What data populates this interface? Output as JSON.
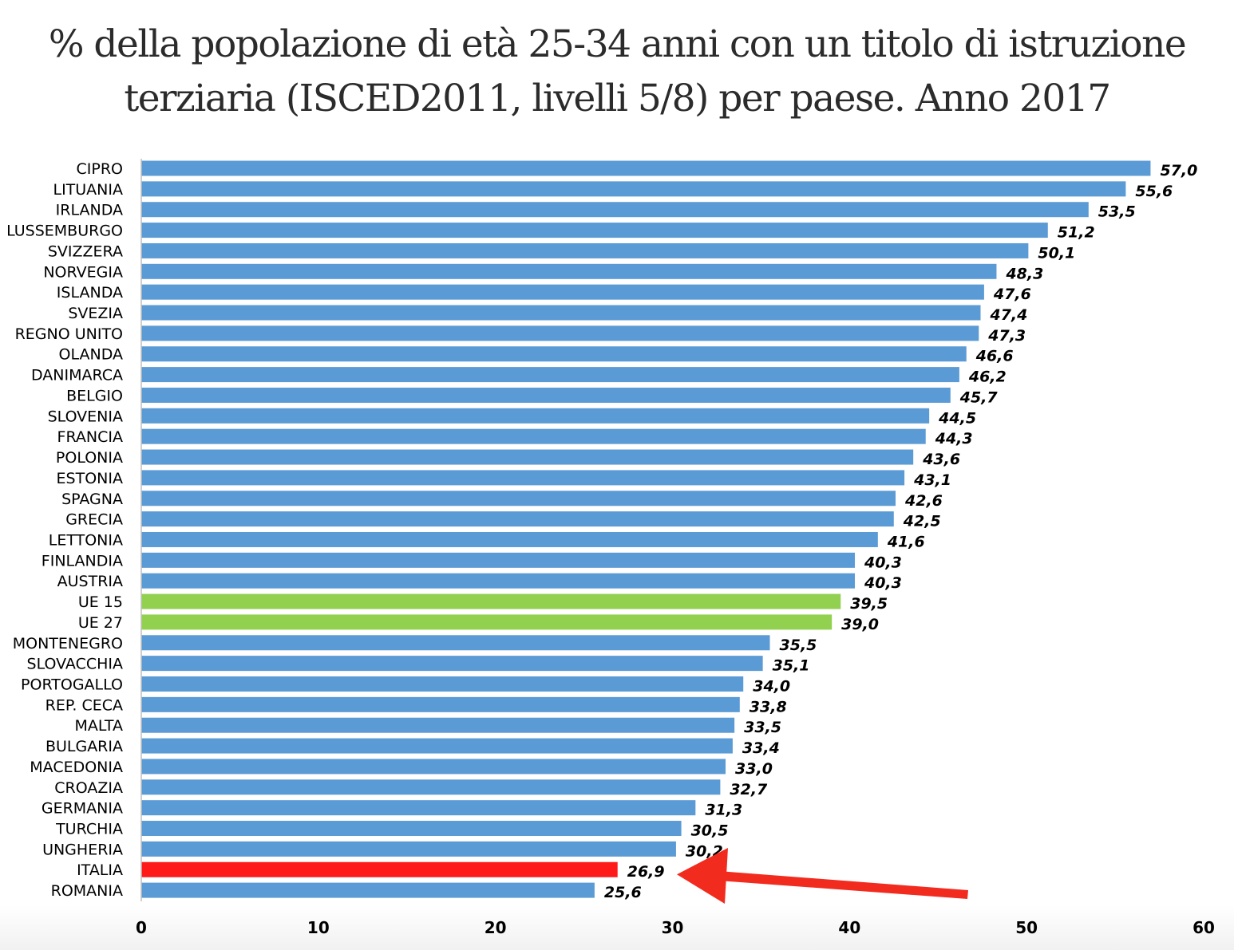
{
  "chart_data": {
    "type": "bar",
    "orientation": "horizontal",
    "title_lines": [
      "% della popolazione di età 25-34 anni con un titolo di istruzione",
      "terziaria (ISCED2011, livelli 5/8) per paese.  Anno 2017"
    ],
    "xlabel": "",
    "ylabel": "",
    "xlim": [
      0,
      60
    ],
    "x_ticks": [
      "0",
      "10",
      "20",
      "30",
      "40",
      "50",
      "60"
    ],
    "grid": false,
    "legend": "none",
    "decimal_separator": ",",
    "categories": [
      "CIPRO",
      "LITUANIA",
      "IRLANDA",
      "LUSSEMBURGO",
      "SVIZZERA",
      "NORVEGIA",
      "ISLANDA",
      "SVEZIA",
      "REGNO UNITO",
      "OLANDA",
      "DANIMARCA",
      "BELGIO",
      "SLOVENIA",
      "FRANCIA",
      "POLONIA",
      "ESTONIA",
      "SPAGNA",
      "GRECIA",
      "LETTONIA",
      "FINLANDIA",
      "AUSTRIA",
      "UE 15",
      "UE 27",
      "MONTENEGRO",
      "SLOVACCHIA",
      "PORTOGALLO",
      "REP. CECA",
      "MALTA",
      "BULGARIA",
      "MACEDONIA",
      "CROAZIA",
      "GERMANIA",
      "TURCHIA",
      "UNGHERIA",
      "ITALIA",
      "ROMANIA"
    ],
    "values": [
      57.0,
      55.6,
      53.5,
      51.2,
      50.1,
      48.3,
      47.6,
      47.4,
      47.3,
      46.6,
      46.2,
      45.7,
      44.5,
      44.3,
      43.6,
      43.1,
      42.6,
      42.5,
      41.6,
      40.3,
      40.3,
      39.5,
      39.0,
      35.5,
      35.1,
      34.0,
      33.8,
      33.5,
      33.4,
      33.0,
      32.7,
      31.3,
      30.5,
      30.2,
      26.9,
      25.6
    ],
    "colors": {
      "default": "#5B9BD5",
      "eu_average": "#92D050",
      "highlight": "#FF1A1A",
      "arrow": "#F22B1F"
    },
    "color_groups": {
      "eu_average": [
        "UE 15",
        "UE 27"
      ],
      "highlight": [
        "ITALIA"
      ]
    },
    "annotations": [
      {
        "type": "arrow",
        "points_to": "ITALIA",
        "color": "#F22B1F"
      }
    ]
  }
}
